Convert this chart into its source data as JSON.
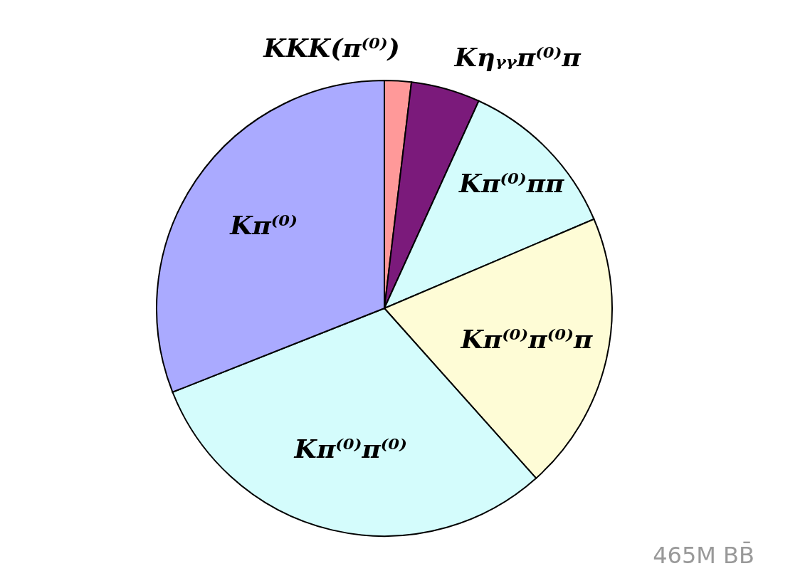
{
  "chart_data": {
    "type": "pie",
    "categories": [
      "KKK(π⁽⁰⁾)",
      "Kηᵧᵧπ⁽⁰⁾π",
      "Kπ⁽⁰⁾ππ",
      "Kπ⁽⁰⁾π⁽⁰⁾π",
      "Kπ⁽⁰⁾π⁽⁰⁾",
      "Kπ⁽⁰⁾"
    ],
    "values": [
      1.9,
      4.9,
      11.8,
      19.8,
      30.6,
      31.0
    ],
    "colors": [
      "#ff9999",
      "#7b1a7b",
      "#d4fcfc",
      "#fefcd6",
      "#d4fcfc",
      "#aaaaff"
    ],
    "annotations": [
      "465M BB̄"
    ]
  }
}
